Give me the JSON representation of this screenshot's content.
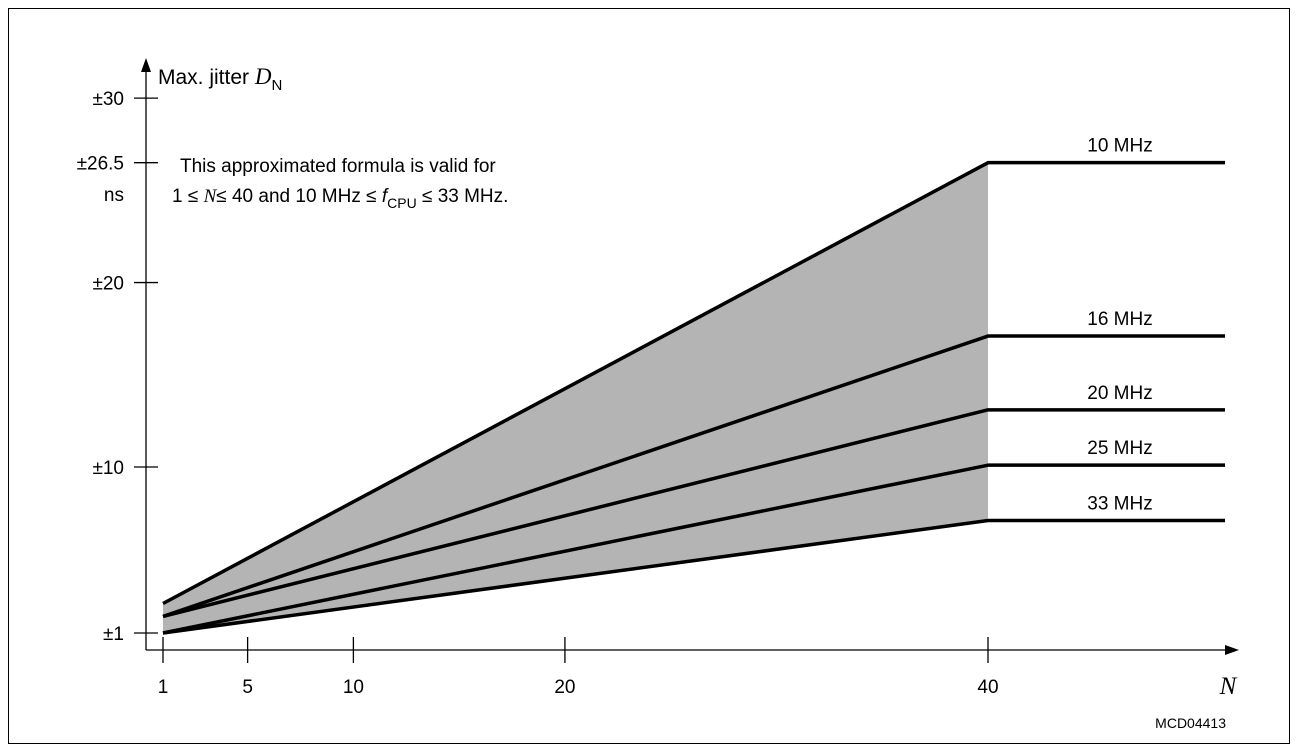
{
  "chart_data": {
    "type": "line",
    "ylabel": "Max. jitter",
    "ylabel_symbol": "D",
    "ylabel_subscript": "N",
    "y_unit": "ns",
    "xlabel": "N",
    "x_ticks": [
      1,
      5,
      10,
      20,
      40
    ],
    "x_tick_labels": [
      "1",
      "5",
      "10",
      "20",
      "40"
    ],
    "y_ticks": [
      1,
      10,
      20,
      26.5,
      30
    ],
    "y_tick_labels": [
      "±1",
      "±10",
      "±20",
      "±26.5",
      "±30"
    ],
    "xlim": [
      0,
      50
    ],
    "ylim": [
      0,
      31
    ],
    "shaded_region": true,
    "colors": {
      "shade": "#b4b4b4",
      "line": "#000000"
    },
    "annotation": {
      "line1": "This approximated formula is valid for",
      "line2_prefix": "1",
      "leq": "≤",
      "var_n": "N",
      "line2_mid": "40 and 10 MHz",
      "var_f": "f",
      "f_subscript": "CPU",
      "line2_end": "33 MHz."
    },
    "series": [
      {
        "name": "10 MHz",
        "x": [
          1,
          40,
          51
        ],
        "y": [
          2.6,
          26.5,
          26.5
        ]
      },
      {
        "name": "16 MHz",
        "x": [
          1,
          40,
          51
        ],
        "y": [
          1.9,
          17.1,
          17.1
        ]
      },
      {
        "name": "20 MHz",
        "x": [
          1,
          40,
          51
        ],
        "y": [
          1.9,
          13.1,
          13.1
        ]
      },
      {
        "name": "25 MHz",
        "x": [
          1,
          40,
          51
        ],
        "y": [
          1.0,
          10.1,
          10.1
        ]
      },
      {
        "name": "33 MHz",
        "x": [
          1,
          40,
          51
        ],
        "y": [
          1.0,
          7.1,
          7.1
        ]
      }
    ],
    "figure_id": "MCD04413"
  }
}
